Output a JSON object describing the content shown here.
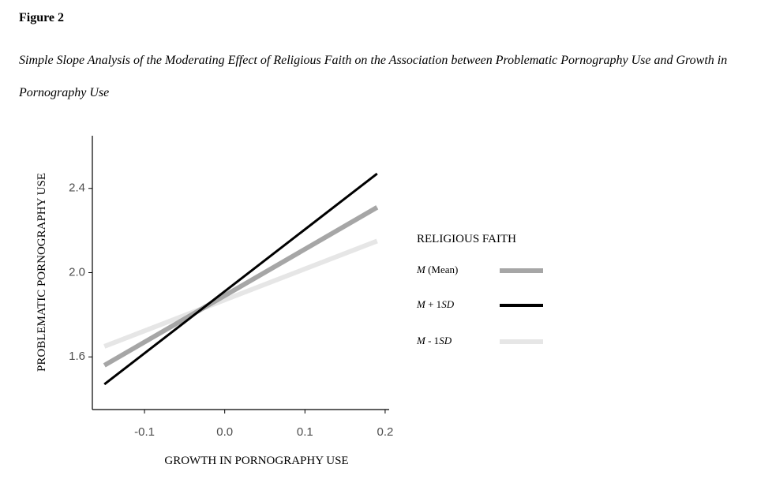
{
  "figure": {
    "label": "Figure 2",
    "caption": "Simple Slope Analysis of the Moderating Effect of Religious Faith on the Association between Problematic Pornography Use and Growth in Pornography Use"
  },
  "chart_data": {
    "type": "line",
    "title": "",
    "xlabel": "GROWTH IN PORNOGRAPHY USE",
    "ylabel": "PROBLEMATIC PORNOGRAPHY USE",
    "xlim": [
      -0.165,
      0.205
    ],
    "ylim": [
      1.35,
      2.65
    ],
    "xticks": [
      -0.1,
      0.0,
      0.1,
      0.2
    ],
    "xtick_labels": [
      "-0.1",
      "0.0",
      "0.1",
      "0.2"
    ],
    "yticks": [
      1.6,
      2.0,
      2.4
    ],
    "ytick_labels": [
      "1.6",
      "2.0",
      "2.4"
    ],
    "grid": false,
    "legend": {
      "title": "RELIGIOUS FAITH",
      "placement": "right"
    },
    "series": [
      {
        "key": "mean",
        "name_main": "M",
        "name_rest": " (Mean)",
        "color": "#a6a6a6",
        "width": 6,
        "x": [
          -0.15,
          0.19
        ],
        "y": [
          1.56,
          2.31
        ]
      },
      {
        "key": "plus",
        "name_main": "M",
        "name_rest": " + 1",
        "name_italic_end": "SD",
        "color": "#000000",
        "width": 3,
        "x": [
          -0.15,
          0.19
        ],
        "y": [
          1.47,
          2.47
        ]
      },
      {
        "key": "minus",
        "name_main": "M",
        "name_rest": " - 1",
        "name_italic_end": "SD",
        "color": "#e6e6e6",
        "width": 6,
        "x": [
          -0.15,
          0.19
        ],
        "y": [
          1.65,
          2.15
        ]
      }
    ]
  }
}
